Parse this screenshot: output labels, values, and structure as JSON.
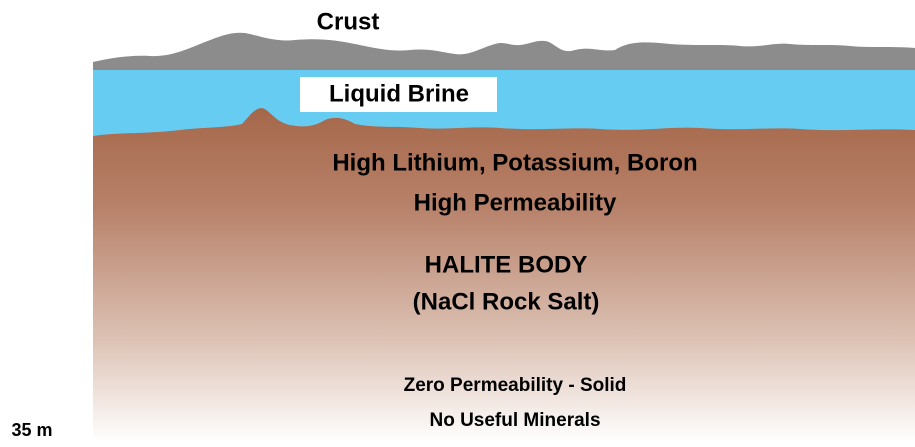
{
  "layers": {
    "crust": "Crust",
    "brine": "Liquid Brine"
  },
  "body": {
    "upper": [
      "High Lithium, Potassium, Boron",
      "High Permeability"
    ],
    "halite": [
      "HALITE BODY",
      "(NaCl Rock Salt)"
    ],
    "lower": [
      "Zero Permeability - Solid",
      "No Useful Minerals"
    ]
  },
  "depth_label": "35 m"
}
